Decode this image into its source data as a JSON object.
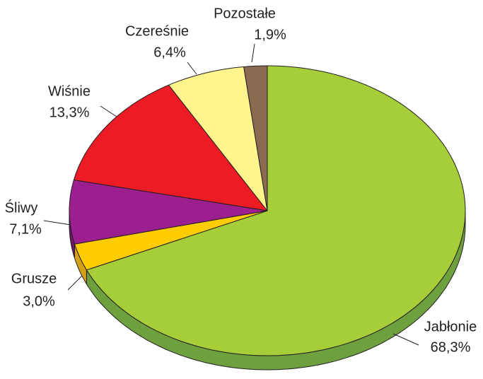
{
  "chart_data": {
    "type": "pie",
    "categories": [
      "Jabłonie",
      "Grusze",
      "Śliwy",
      "Wiśnie",
      "Czereśnie",
      "Pozostałe"
    ],
    "values": [
      68.3,
      3.0,
      7.1,
      13.3,
      6.4,
      1.9
    ],
    "value_labels": [
      "68,3%",
      "3,0%",
      "7,1%",
      "13,3%",
      "6,4%",
      "1,9%"
    ],
    "colors": [
      "#a6ce39",
      "#ffcc00",
      "#9b1f8e",
      "#ed1c24",
      "#fff58c",
      "#8b6b4f"
    ],
    "side_colors": [
      "#6ea03e",
      "#d4a017",
      "#6e1566",
      "#a8141a",
      "#c9c060",
      "#5e4632"
    ]
  }
}
